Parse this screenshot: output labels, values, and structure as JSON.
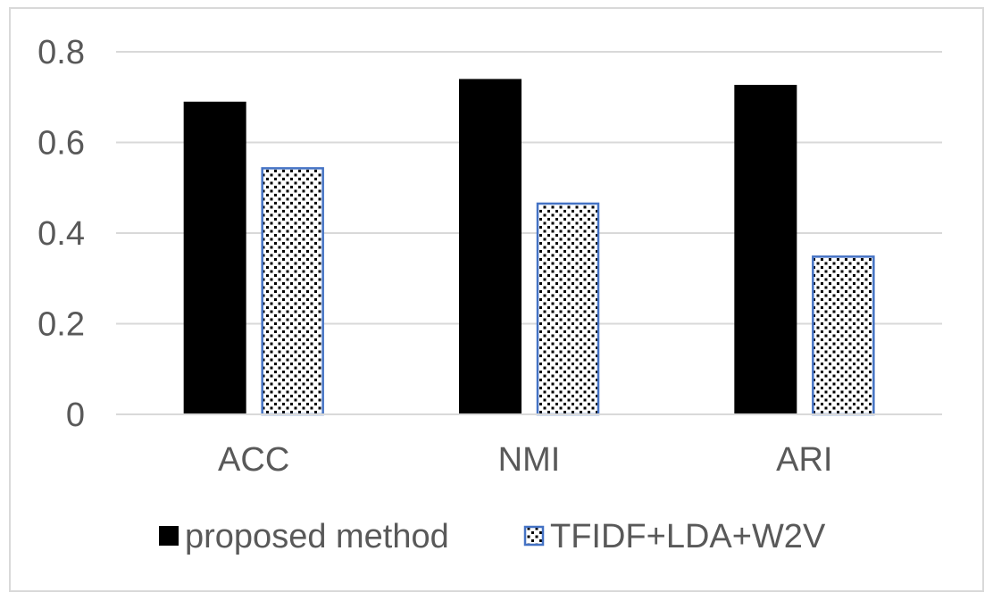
{
  "chart_data": {
    "type": "bar",
    "title": "",
    "xlabel": "",
    "ylabel": "",
    "categories": [
      "ACC",
      "NMI",
      "ARI"
    ],
    "series": [
      {
        "name": "proposed method",
        "values": [
          0.69,
          0.74,
          0.727
        ],
        "color": "#000000",
        "pattern": "solid"
      },
      {
        "name": "TFIDF+LDA+W2V",
        "values": [
          0.545,
          0.467,
          0.35
        ],
        "color": "#4472c4",
        "pattern": "dotted"
      }
    ],
    "ylim": [
      0,
      0.8
    ],
    "yticks": [
      0,
      0.2,
      0.4,
      0.6,
      0.8
    ],
    "ytick_labels": [
      "0",
      "0.2",
      "0.4",
      "0.6",
      "0.8"
    ],
    "grid": true,
    "legend_position": "bottom"
  }
}
